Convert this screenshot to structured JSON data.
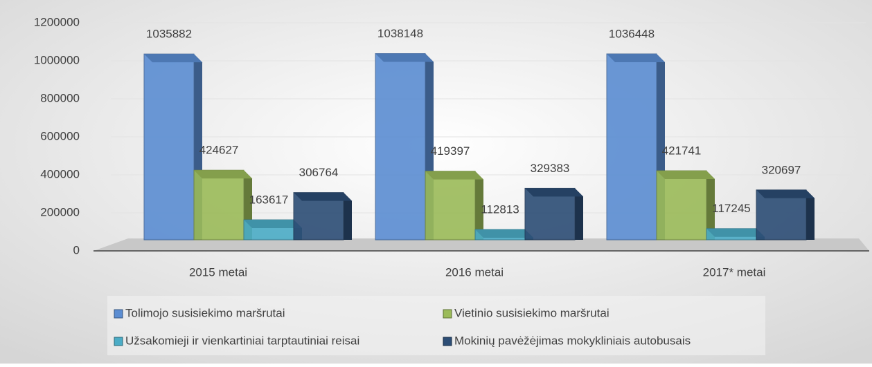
{
  "chart_data": {
    "type": "bar",
    "categories": [
      "2015 metai",
      "2016 metai",
      "2017* metai"
    ],
    "series": [
      {
        "name": "Tolimojo susisiekimo maršrutai",
        "color": "#5b8dd2",
        "values": [
          1035882,
          1038148,
          1036448
        ]
      },
      {
        "name": "Vietinio susisiekimo maršrutai",
        "color": "#9bbb59",
        "values": [
          424627,
          419397,
          421741
        ]
      },
      {
        "name": "Užsakomieji ir vienkartiniai tarptautiniai reisai",
        "color": "#4bacc6",
        "values": [
          163617,
          112813,
          117245
        ]
      },
      {
        "name": "Mokinių pavėžėjimas mokykliniais autobusais",
        "color": "#2c4d75",
        "values": [
          306764,
          329383,
          320697
        ]
      }
    ],
    "ylim": [
      0,
      1200000
    ],
    "yticks": [
      0,
      200000,
      400000,
      600000,
      800000,
      1000000,
      1200000
    ],
    "grid": true,
    "legend": "bottom"
  }
}
